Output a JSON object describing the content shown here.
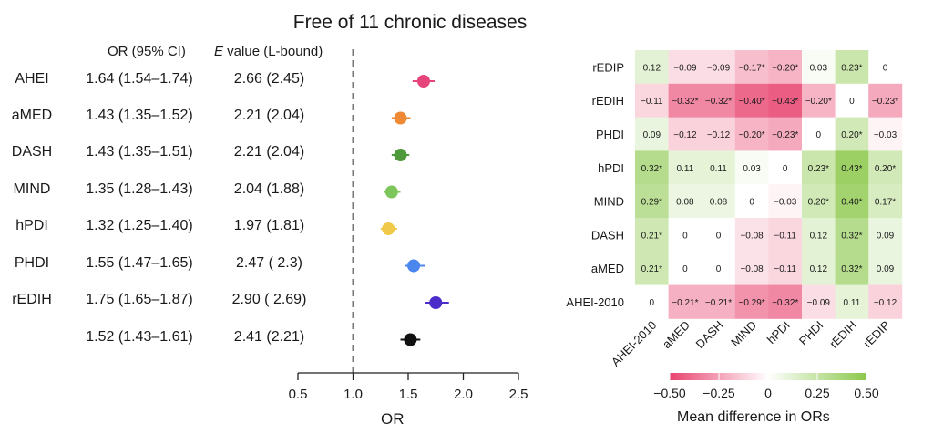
{
  "forest": {
    "title": "Free of 11 chronic diseases",
    "or_header": "OR (95% CI)",
    "e_header_italic": "E",
    "e_header_rest": " value (L-bound)",
    "xlabel": "OR",
    "rows": [
      {
        "label": "AHEI",
        "or_text": "1.64 (1.54–1.74)",
        "e_text": "2.66 (2.45)",
        "or": 1.64,
        "lo": 1.54,
        "hi": 1.74,
        "color": "#e5457a"
      },
      {
        "label": "aMED",
        "or_text": "1.43 (1.35–1.52)",
        "e_text": "2.21 (2.04)",
        "or": 1.43,
        "lo": 1.35,
        "hi": 1.52,
        "color": "#ee8a35"
      },
      {
        "label": "DASH",
        "or_text": "1.43 (1.35–1.51)",
        "e_text": "2.21 (2.04)",
        "or": 1.43,
        "lo": 1.35,
        "hi": 1.51,
        "color": "#4f9a3a"
      },
      {
        "label": "MIND",
        "or_text": "1.35 (1.28–1.43)",
        "e_text": "2.04 (1.88)",
        "or": 1.35,
        "lo": 1.28,
        "hi": 1.43,
        "color": "#7dc65c"
      },
      {
        "label": "hPDI",
        "or_text": "1.32 (1.25–1.40)",
        "e_text": "1.97 (1.81)",
        "or": 1.32,
        "lo": 1.25,
        "hi": 1.4,
        "color": "#f0c94a"
      },
      {
        "label": "PHDI",
        "or_text": "1.55 (1.47–1.65)",
        "e_text": "2.47 ( 2.3)",
        "or": 1.55,
        "lo": 1.47,
        "hi": 1.65,
        "color": "#4a86ee"
      },
      {
        "label": "rEDIH",
        "or_text": "1.75 (1.65–1.87)",
        "e_text": "2.90 ( 2.69)",
        "or": 1.75,
        "lo": 1.65,
        "hi": 1.87,
        "color": "#4b2dc9"
      },
      {
        "label": "",
        "or_text": "1.52 (1.43–1.61)",
        "e_text": "2.41 (2.21)",
        "or": 1.52,
        "lo": 1.43,
        "hi": 1.61,
        "color": "#111111"
      }
    ],
    "ticks": [
      "0.5",
      "1.0",
      "1.5",
      "2.0",
      "2.5"
    ],
    "tick_values": [
      0.5,
      1.0,
      1.5,
      2.0,
      2.5
    ],
    "reference_line": 1.0
  },
  "chart_data": [
    {
      "type": "scatter",
      "title": "Free of 11 chronic diseases",
      "xlabel": "OR",
      "xlim": [
        0.5,
        2.5
      ],
      "categories": [
        "AHEI",
        "aMED",
        "DASH",
        "MIND",
        "hPDI",
        "PHDI",
        "rEDIH",
        ""
      ],
      "values": [
        1.64,
        1.43,
        1.43,
        1.35,
        1.32,
        1.55,
        1.75,
        1.52
      ],
      "ci_low": [
        1.54,
        1.35,
        1.35,
        1.28,
        1.25,
        1.47,
        1.65,
        1.43
      ],
      "ci_high": [
        1.74,
        1.52,
        1.51,
        1.43,
        1.4,
        1.65,
        1.87,
        1.61
      ]
    },
    {
      "type": "heatmap",
      "rows": [
        "rEDIP",
        "rEDIH",
        "PHDI",
        "hPDI",
        "MIND",
        "DASH",
        "aMED",
        "AHEI-2010"
      ],
      "cols": [
        "AHEI-2010",
        "aMED",
        "DASH",
        "MIND",
        "hPDI",
        "PHDI",
        "rEDIH",
        "rEDIP"
      ],
      "values": [
        [
          0.12,
          -0.09,
          -0.09,
          -0.17,
          -0.2,
          0.03,
          0.23,
          0
        ],
        [
          -0.11,
          -0.32,
          -0.32,
          -0.4,
          -0.43,
          -0.2,
          0,
          -0.23
        ],
        [
          0.09,
          -0.12,
          -0.12,
          -0.2,
          -0.23,
          0,
          0.2,
          -0.03
        ],
        [
          0.32,
          0.11,
          0.11,
          0.03,
          0,
          0.23,
          0.43,
          0.2
        ],
        [
          0.29,
          0.08,
          0.08,
          0,
          -0.03,
          0.2,
          0.4,
          0.17
        ],
        [
          0.21,
          0,
          0,
          -0.08,
          -0.11,
          0.12,
          0.32,
          0.09
        ],
        [
          0.21,
          0,
          0,
          -0.08,
          -0.11,
          0.12,
          0.32,
          0.09
        ],
        [
          0,
          -0.21,
          -0.21,
          -0.29,
          -0.32,
          -0.09,
          0.11,
          -0.12
        ]
      ],
      "labels": [
        [
          "0.12",
          "−0.09",
          "−0.09",
          "−0.17*",
          "−0.20*",
          "0.03",
          "0.23*",
          "0"
        ],
        [
          "−0.11",
          "−0.32*",
          "−0.32*",
          "−0.40*",
          "−0.43*",
          "−0.20*",
          "0",
          "−0.23*"
        ],
        [
          "0.09",
          "−0.12",
          "−0.12",
          "−0.20*",
          "−0.23*",
          "0",
          "0.20*",
          "−0.03"
        ],
        [
          "0.32*",
          "0.11",
          "0.11",
          "0.03",
          "0",
          "0.23*",
          "0.43*",
          "0.20*"
        ],
        [
          "0.29*",
          "0.08",
          "0.08",
          "0",
          "−0.03",
          "0.20*",
          "0.40*",
          "0.17*"
        ],
        [
          "0.21*",
          "0",
          "0",
          "−0.08",
          "−0.11",
          "0.12",
          "0.32*",
          "0.09"
        ],
        [
          "0.21*",
          "0",
          "0",
          "−0.08",
          "−0.11",
          "0.12",
          "0.32*",
          "0.09"
        ],
        [
          "0",
          "−0.21*",
          "−0.21*",
          "−0.29*",
          "−0.32*",
          "−0.09",
          "0.11",
          "−0.12"
        ]
      ],
      "colorbar": {
        "title": "Mean difference in ORs",
        "ticks": [
          "−0.50",
          "−0.25",
          "0",
          "0.25",
          "0.50"
        ],
        "tick_values": [
          -0.5,
          -0.25,
          0,
          0.25,
          0.5
        ],
        "range": [
          -0.5,
          0.5
        ],
        "low_color": "#e8436f",
        "mid_color": "#ffffff",
        "high_color": "#8cc84b"
      }
    }
  ]
}
